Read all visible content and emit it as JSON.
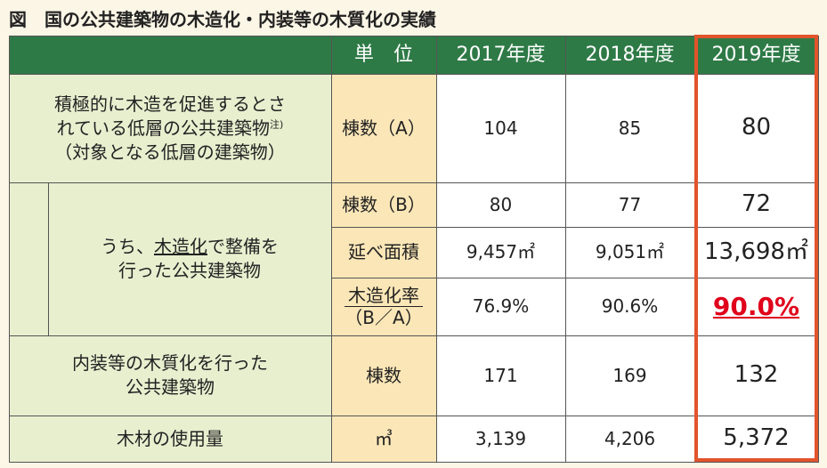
{
  "title": "図　国の公共建築物の木造化・内装等の木質化の実績",
  "header": {
    "col_unit": "単　位",
    "years": [
      "2017年度",
      "2018年度",
      "2019年度"
    ]
  },
  "rows": {
    "target_label_1": "積極的に木造を促進するとさ",
    "target_label_2": "れている低層の公共建築物",
    "target_note": "注)",
    "target_label_3": "（対象となる低層の建築物）",
    "target_unit": "棟数（A）",
    "target_values": [
      "104",
      "85",
      "80"
    ],
    "wood_group_label_pre": "うち、",
    "wood_group_label_ul": "木造化",
    "wood_group_label_post": "で整備を",
    "wood_group_label_2": "行った公共建築物",
    "wood_count_unit": "棟数（B）",
    "wood_count_values": [
      "80",
      "77",
      "72"
    ],
    "wood_area_unit": "延べ面積",
    "wood_area_values": [
      "9,457㎡",
      "9,051㎡",
      "13,698㎡"
    ],
    "wood_rate_unit_top": "木造化率",
    "wood_rate_unit_bottom": "（B／A）",
    "wood_rate_values": [
      "76.9%",
      "90.6%",
      "90.0%"
    ],
    "interior_label_1": "内装等の木質化を行った",
    "interior_label_2": "公共建築物",
    "interior_unit": "棟数",
    "interior_values": [
      "171",
      "169",
      "132"
    ],
    "timber_label": "木材の使用量",
    "timber_unit": "㎥",
    "timber_values": [
      "3,139",
      "4,206",
      "5,372"
    ]
  },
  "colors": {
    "header": "#2e7a46",
    "label": "#e8efcf",
    "unit": "#fbe6b7",
    "highlight": "#e2542b",
    "emphasis": "#e0001b"
  }
}
